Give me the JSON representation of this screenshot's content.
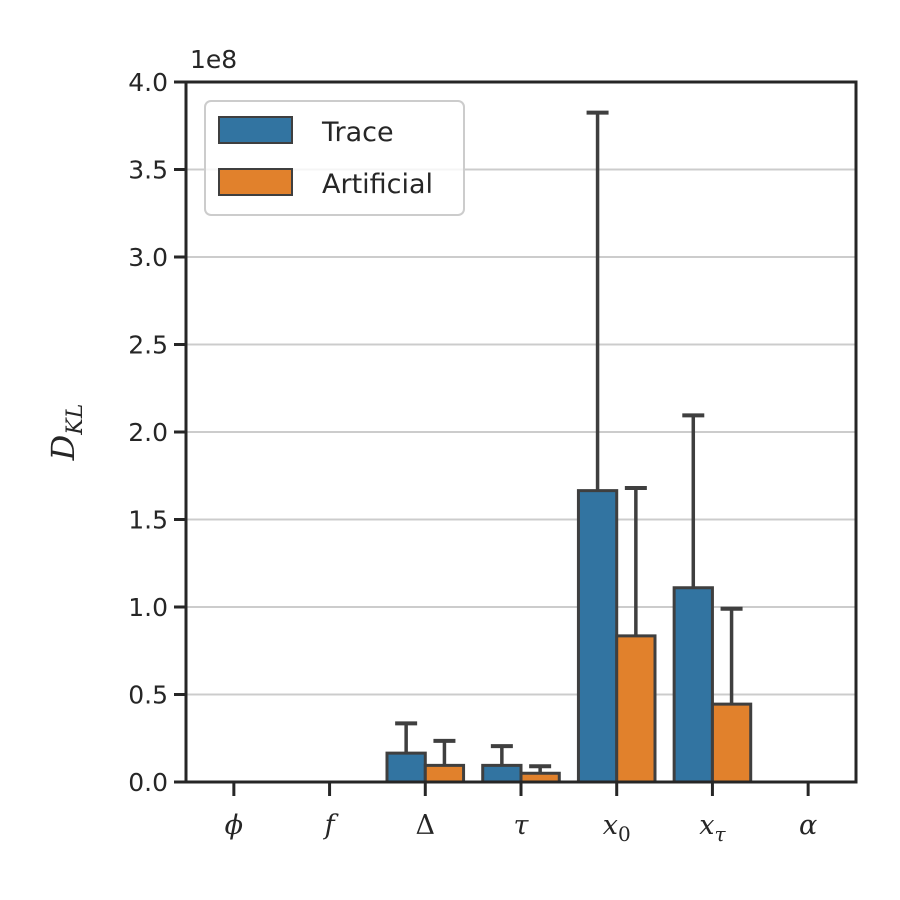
{
  "chart_data": {
    "type": "bar",
    "title": "",
    "xlabel": "",
    "ylabel": "D",
    "ylabel_sub": "KL",
    "scale_offset": "1e8",
    "categories": [
      {
        "base": "ϕ",
        "sub": ""
      },
      {
        "base": "f",
        "sub": ""
      },
      {
        "base": "Δ",
        "sub": ""
      },
      {
        "base": "τ",
        "sub": ""
      },
      {
        "base": "x",
        "sub": "0"
      },
      {
        "base": "x",
        "sub": "τ"
      },
      {
        "base": "α",
        "sub": ""
      }
    ],
    "series": [
      {
        "name": "Trace",
        "color": "#3274a1",
        "values": [
          0,
          0,
          0.165,
          0.095,
          1.665,
          1.11,
          0
        ],
        "err_upper": [
          null,
          null,
          0.335,
          0.205,
          3.825,
          2.095,
          null
        ]
      },
      {
        "name": "Artificial",
        "color": "#e1812c",
        "values": [
          0,
          0,
          0.095,
          0.05,
          0.835,
          0.445,
          0
        ],
        "err_upper": [
          null,
          null,
          0.235,
          0.09,
          1.68,
          0.99,
          null
        ]
      }
    ],
    "ylim": [
      0,
      4.0
    ],
    "yticks": [
      "0.0",
      "0.5",
      "1.0",
      "1.5",
      "2.0",
      "2.5",
      "3.0",
      "3.5",
      "4.0"
    ],
    "grid": "horizontal",
    "legend_position": "top-left"
  }
}
